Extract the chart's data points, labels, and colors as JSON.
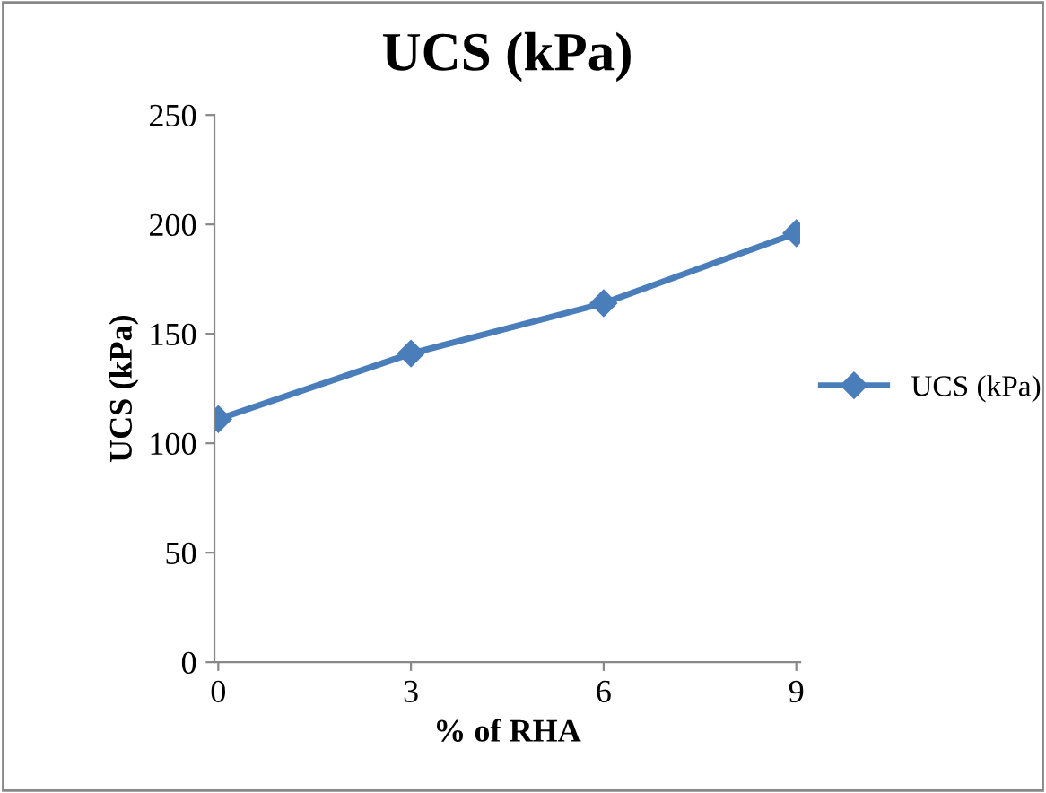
{
  "chart_data": {
    "type": "line",
    "title": "UCS (kPa)",
    "xlabel": "% of RHA",
    "ylabel": "UCS (kPa)",
    "categories": [
      "0",
      "3",
      "6",
      "9"
    ],
    "series": [
      {
        "name": "UCS (kPa)",
        "color": "#4a7ebb",
        "values": [
          111,
          141,
          164,
          196
        ]
      }
    ],
    "ylim": [
      0,
      250
    ],
    "yticks": [
      0,
      50,
      100,
      150,
      200,
      250
    ],
    "marker": "diamond",
    "line_style": "solid",
    "legend": "right",
    "grid": false
  }
}
